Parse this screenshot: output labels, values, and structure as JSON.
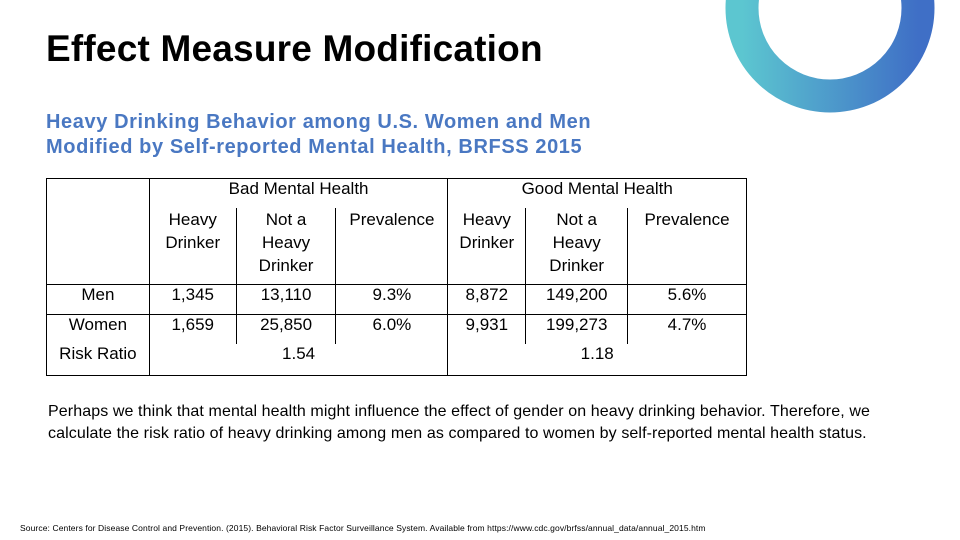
{
  "slide": {
    "title": "Effect Measure Modification",
    "subtitle_line1": "Heavy Drinking Behavior among U.S. Women and Men",
    "subtitle_line2": "Modified by Self-reported Mental Health, BRFSS 2015",
    "accent_colors": [
      "#5cc6d0",
      "#4a78c2",
      "#3f6fc6"
    ]
  },
  "table": {
    "group_headers": [
      "Bad Mental Health",
      "Good Mental Health"
    ],
    "column_headers": {
      "heavy_l1": "Heavy",
      "heavy_l2": "Drinker",
      "not_l1": "Not a",
      "not_l2": "Heavy",
      "not_l3": "Drinker",
      "prevalence": "Prevalence"
    },
    "rows": [
      {
        "label": "Men",
        "bad_heavy": "1,345",
        "bad_not": "13,110",
        "bad_prev": "9.3%",
        "good_heavy": "8,872",
        "good_not": "149,200",
        "good_prev": "5.6%"
      },
      {
        "label": "Women",
        "bad_heavy": "1,659",
        "bad_not": "25,850",
        "bad_prev": "6.0%",
        "good_heavy": "9,931",
        "good_not": "199,273",
        "good_prev": "4.7%"
      }
    ],
    "risk_ratio": {
      "label": "Risk Ratio",
      "bad": "1.54",
      "good": "1.18"
    }
  },
  "body_text": "Perhaps we think that mental health might influence the effect of gender on heavy drinking behavior. Therefore, we calculate the risk ratio of heavy drinking among men as compared to women by self-reported mental health status.",
  "source": "Source: Centers for Disease Control and Prevention. (2015). Behavioral Risk Factor Surveillance System. Available from https://www.cdc.gov/brfss/annual_data/annual_2015.htm"
}
